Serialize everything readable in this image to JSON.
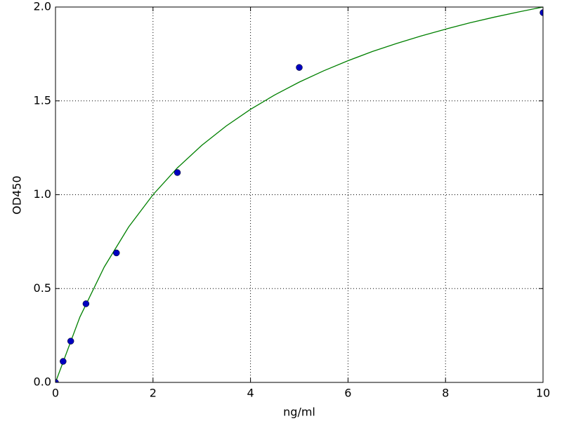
{
  "chart_data": {
    "type": "scatter",
    "x_label": "ng/ml",
    "y_label": "OD450",
    "series": [
      {
        "style": "markers",
        "color": "#0000c0",
        "x": [
          0,
          0.156,
          0.3125,
          0.625,
          1.25,
          2.5,
          5,
          10
        ],
        "values": [
          0.0,
          0.112,
          0.22,
          0.419,
          0.69,
          1.118,
          1.678,
          1.97
        ]
      },
      {
        "style": "line",
        "color": "#008000",
        "x": [
          0,
          0.5,
          1,
          1.5,
          2,
          2.5,
          3,
          3.5,
          4,
          4.5,
          5,
          5.5,
          6,
          6.5,
          7,
          7.5,
          8,
          8.5,
          9,
          9.5,
          10
        ],
        "values": [
          0,
          0.348,
          0.615,
          0.828,
          1.0,
          1.143,
          1.263,
          1.366,
          1.455,
          1.532,
          1.6,
          1.66,
          1.714,
          1.763,
          1.806,
          1.846,
          1.882,
          1.916,
          1.946,
          1.974,
          2.0
        ]
      }
    ],
    "xlim": [
      0,
      10
    ],
    "xticks": [
      0,
      2,
      4,
      6,
      8,
      10
    ],
    "ylim": [
      0,
      2
    ],
    "yticks": [
      {
        "value": 0,
        "label": "0.0"
      },
      {
        "value": 0.5,
        "label": "0.5"
      },
      {
        "value": 1,
        "label": "1.0"
      },
      {
        "value": 1.5,
        "label": "1.5"
      },
      {
        "value": 2,
        "label": "2.0"
      }
    ],
    "grid": true
  }
}
